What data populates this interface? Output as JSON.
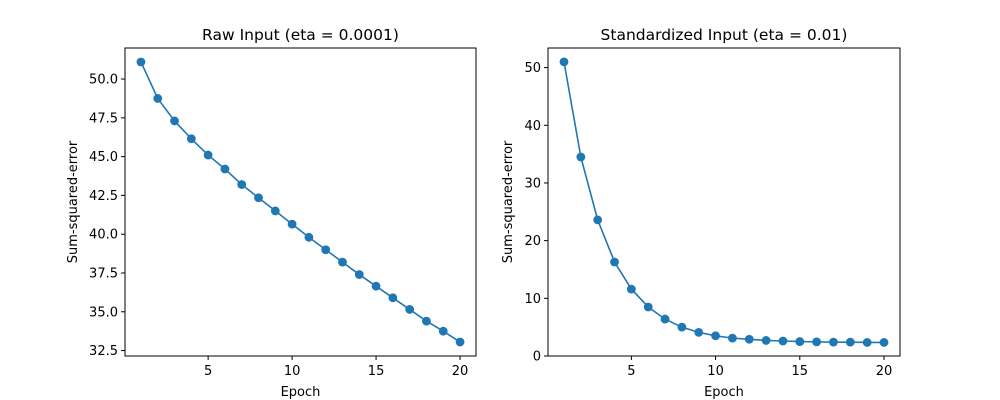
{
  "chart_data": [
    {
      "type": "line",
      "title": "Raw Input (eta = 0.0001)",
      "xlabel": "Epoch",
      "ylabel": "Sum-squared-error",
      "x": [
        1,
        2,
        3,
        4,
        5,
        6,
        7,
        8,
        9,
        10,
        11,
        12,
        13,
        14,
        15,
        16,
        17,
        18,
        19,
        20
      ],
      "series": [
        {
          "values": [
            51.1,
            48.75,
            47.3,
            46.15,
            45.1,
            44.2,
            43.2,
            42.35,
            41.5,
            40.65,
            39.8,
            39.0,
            38.2,
            37.4,
            36.65,
            35.9,
            35.15,
            34.4,
            33.75,
            33.05
          ],
          "color": "#1f77b4",
          "marker": "circle"
        }
      ],
      "xlim": [
        0.05,
        20.95
      ],
      "ylim": [
        32.15,
        52.0
      ],
      "xticks": [
        5,
        10,
        15,
        20
      ],
      "xtick_labels": [
        "5",
        "10",
        "15",
        "20"
      ],
      "yticks": [
        32.5,
        35.0,
        37.5,
        40.0,
        42.5,
        45.0,
        47.5,
        50.0
      ],
      "ytick_labels": [
        "32.5",
        "35.0",
        "37.5",
        "40.0",
        "42.5",
        "45.0",
        "47.5",
        "50.0"
      ],
      "grid": false,
      "legend": "none"
    },
    {
      "type": "line",
      "title": "Standardized Input (eta = 0.01)",
      "xlabel": "Epoch",
      "ylabel": "Sum-squared-error",
      "x": [
        1,
        2,
        3,
        4,
        5,
        6,
        7,
        8,
        9,
        10,
        11,
        12,
        13,
        14,
        15,
        16,
        17,
        18,
        19,
        20
      ],
      "series": [
        {
          "values": [
            51.0,
            34.5,
            23.6,
            16.3,
            11.6,
            8.5,
            6.4,
            5.0,
            4.1,
            3.5,
            3.1,
            2.9,
            2.7,
            2.6,
            2.5,
            2.45,
            2.4,
            2.4,
            2.35,
            2.35
          ],
          "color": "#1f77b4",
          "marker": "circle"
        }
      ],
      "xlim": [
        0.05,
        20.95
      ],
      "ylim": [
        0,
        53.4
      ],
      "xticks": [
        5,
        10,
        15,
        20
      ],
      "xtick_labels": [
        "5",
        "10",
        "15",
        "20"
      ],
      "yticks": [
        0,
        10,
        20,
        30,
        40,
        50
      ],
      "ytick_labels": [
        "0",
        "10",
        "20",
        "30",
        "40",
        "50"
      ],
      "grid": false,
      "legend": "none"
    }
  ]
}
